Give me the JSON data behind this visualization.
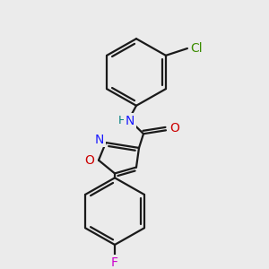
{
  "bg_color": "#ebebeb",
  "bond_color": "#1a1a1a",
  "bond_width": 1.6,
  "figsize": [
    3.0,
    3.0
  ],
  "dpi": 100,
  "colors": {
    "N": "#1a1aff",
    "O": "#cc0000",
    "Cl": "#3a8c00",
    "F": "#cc00cc",
    "H": "#008080",
    "C": "#1a1a1a"
  }
}
